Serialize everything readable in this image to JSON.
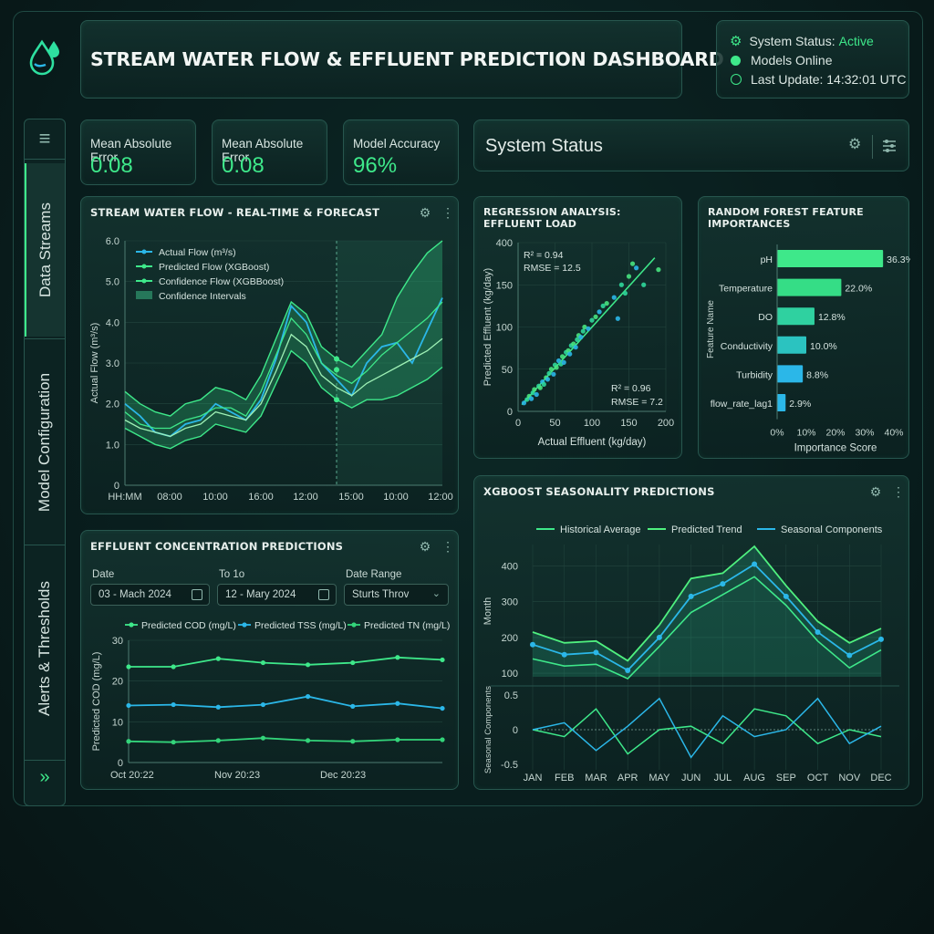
{
  "header": {
    "title": "STREAM WATER FLOW & EFFLUENT PREDICTION DASHBOARD",
    "status": {
      "label": "System Status:",
      "value": "Active",
      "models": "Models Online",
      "last_update": "Last Update: 14:32:01 UTC"
    }
  },
  "sidebar": {
    "tabs": [
      {
        "label": "Data Streams"
      },
      {
        "label": "Model Configuration"
      },
      {
        "label": "Alerts & Thresholds"
      }
    ],
    "expand_label": "»",
    "menu_label": "≡"
  },
  "kpis": [
    {
      "label": "Mean Absolute Error",
      "value": "0.08"
    },
    {
      "label": "Mean Absolute Error",
      "value": "0.08"
    },
    {
      "label": "Model Accuracy",
      "value": "96%"
    }
  ],
  "system_status_panel": {
    "title": "System Status"
  },
  "flow_chart": {
    "title": "STREAM WATER FLOW - REAL-TIME & FORECAST",
    "legend": [
      "Actual Flow (m³/s)",
      "Predicted Flow (XGBoost)",
      "Confidence Flow (XGBBoost)",
      "Confidence Intervals"
    ],
    "ylabel": "Actual Flow (m³/s)",
    "yticks": [
      "6.0",
      "5.0",
      "4.0",
      "3.0",
      "2.0",
      "1.0",
      "0"
    ],
    "xticks": [
      "HH:MM",
      "08:00",
      "10:00",
      "16:00",
      "12:00",
      "15:00",
      "10:00",
      "12:00"
    ]
  },
  "regression_chart": {
    "title": "REGRESSION ANALYSIS: EFFLUENT LOAD",
    "stats_top": [
      "R² = 0.94",
      "RMSE = 12.5"
    ],
    "stats_bottom": [
      "R² = 0.96",
      "RMSE = 7.2"
    ],
    "xlabel": "Actual Effluent (kg/day)",
    "ylabel": "Predicted Effluent (kg/day)",
    "xticks": [
      "0",
      "50",
      "100",
      "150",
      "200"
    ],
    "yticks": [
      "400",
      "150",
      "100",
      "50",
      "0"
    ]
  },
  "feature_chart": {
    "title": "RANDOM FOREST FEATURE IMPORTANCES",
    "ylabel": "Feature Name",
    "xlabel": "Importance Score",
    "xticks": [
      "0%",
      "10%",
      "20%",
      "30%",
      "40%"
    ],
    "features": [
      {
        "name": "pH",
        "label": "36.3%"
      },
      {
        "name": "Temperature",
        "label": "22.0%"
      },
      {
        "name": "DO",
        "label": "12.8%"
      },
      {
        "name": "Conductivity",
        "label": "10.0%"
      },
      {
        "name": "Turbidity",
        "label": "8.8%"
      },
      {
        "name": "flow_rate_lag1",
        "label": "2.9%"
      }
    ]
  },
  "effluent_chart": {
    "title": "EFFLUENT CONCENTRATION PREDICTIONS",
    "date_label": "Date",
    "to_label": "To 1o",
    "range_label": "Date Range",
    "date_value": "03 - Mach 2024",
    "to_value": "12 - Mary 2024",
    "range_value": "Sturts Throv",
    "legend": [
      "Predicted COD (mg/L)",
      "Predicted TSS (mg/L)",
      "Predicted TN (mg/L)"
    ],
    "ylabel": "Predicted COD (mg/L)",
    "yticks": [
      "30",
      "20",
      "10",
      "0"
    ],
    "xticks": [
      "Oct 20:22",
      "Nov 20:23",
      "Dec 20:23"
    ]
  },
  "seasonality_chart": {
    "title": "XGBOOST SEASONALITY PREDICTIONS",
    "legend": [
      "Historical Average",
      "Predicted Trend",
      "Seasonal Components"
    ],
    "ylabel_top": "Month",
    "ylabel_bottom": "Seasonal Components",
    "yticks_top": [
      "400",
      "300",
      "200",
      "100"
    ],
    "yticks_bottom": [
      "0.5",
      "0",
      "-0.5"
    ],
    "months": [
      "JAN",
      "FEB",
      "MAR",
      "APR",
      "MAY",
      "JUN",
      "JUL",
      "AUG",
      "SEP",
      "OCT",
      "NOV",
      "DEC"
    ]
  },
  "chart_data": [
    {
      "type": "line",
      "title": "STREAM WATER FLOW - REAL-TIME & FORECAST",
      "ylim": [
        0,
        6
      ],
      "series": [
        {
          "name": "Actual Flow (m³/s)",
          "values": [
            2.0,
            1.7,
            1.3,
            1.2,
            1.5,
            1.6,
            2.0,
            1.8,
            1.6,
            2.1,
            3.1,
            4.4,
            4.0,
            3.0,
            2.6,
            2.2,
            3.0,
            3.4,
            3.5,
            3.0,
            3.8,
            4.6
          ]
        },
        {
          "name": "Predicted Flow (XGBoost)",
          "values": [
            1.8,
            1.5,
            1.4,
            1.4,
            1.6,
            1.7,
            1.9,
            1.9,
            1.7,
            2.3,
            3.2,
            4.1,
            3.7,
            3.0,
            2.7,
            2.5,
            2.8,
            3.2,
            3.5,
            3.8,
            4.1,
            4.5
          ]
        },
        {
          "name": "Confidence Flow (XGBBoost)",
          "values": [
            1.6,
            1.4,
            1.3,
            1.2,
            1.4,
            1.5,
            1.8,
            1.7,
            1.6,
            2.0,
            2.8,
            3.7,
            3.4,
            2.7,
            2.4,
            2.2,
            2.5,
            2.7,
            2.9,
            3.1,
            3.3,
            3.6
          ]
        }
      ],
      "band_upper": [
        2.3,
        2.0,
        1.8,
        1.7,
        2.0,
        2.1,
        2.4,
        2.3,
        2.1,
        2.7,
        3.6,
        4.5,
        4.2,
        3.4,
        3.1,
        2.9,
        3.3,
        3.7,
        4.6,
        5.2,
        5.7,
        6.0
      ],
      "band_lower": [
        1.4,
        1.2,
        1.0,
        0.9,
        1.1,
        1.2,
        1.5,
        1.4,
        1.3,
        1.7,
        2.5,
        3.3,
        3.0,
        2.4,
        2.1,
        1.9,
        2.1,
        2.1,
        2.2,
        2.4,
        2.6,
        2.9
      ]
    },
    {
      "type": "scatter",
      "title": "REGRESSION ANALYSIS: EFFLUENT LOAD",
      "xlim": [
        0,
        200
      ],
      "ylim": [
        0,
        200
      ],
      "points": [
        [
          8,
          10
        ],
        [
          12,
          14
        ],
        [
          15,
          18
        ],
        [
          18,
          15
        ],
        [
          20,
          22
        ],
        [
          22,
          26
        ],
        [
          25,
          20
        ],
        [
          28,
          30
        ],
        [
          30,
          28
        ],
        [
          33,
          35
        ],
        [
          35,
          32
        ],
        [
          38,
          40
        ],
        [
          40,
          38
        ],
        [
          42,
          45
        ],
        [
          45,
          50
        ],
        [
          48,
          44
        ],
        [
          50,
          55
        ],
        [
          52,
          52
        ],
        [
          55,
          60
        ],
        [
          58,
          56
        ],
        [
          60,
          65
        ],
        [
          62,
          58
        ],
        [
          65,
          70
        ],
        [
          68,
          72
        ],
        [
          70,
          68
        ],
        [
          72,
          78
        ],
        [
          75,
          80
        ],
        [
          78,
          76
        ],
        [
          80,
          85
        ],
        [
          82,
          90
        ],
        [
          85,
          88
        ],
        [
          88,
          95
        ],
        [
          90,
          100
        ],
        [
          95,
          98
        ],
        [
          100,
          108
        ],
        [
          105,
          112
        ],
        [
          110,
          118
        ],
        [
          115,
          125
        ],
        [
          120,
          128
        ],
        [
          130,
          135
        ],
        [
          140,
          150
        ],
        [
          150,
          160
        ],
        [
          160,
          170
        ],
        [
          170,
          150
        ],
        [
          190,
          168
        ],
        [
          135,
          110
        ],
        [
          145,
          140
        ],
        [
          155,
          175
        ]
      ],
      "fit": [
        [
          5,
          8
        ],
        [
          185,
          182
        ]
      ]
    },
    {
      "type": "bar",
      "title": "RANDOM FOREST FEATURE IMPORTANCES",
      "categories": [
        "pH",
        "Temperature",
        "DO",
        "Conductivity",
        "Turbidity",
        "flow_rate_lag1"
      ],
      "values": [
        36.3,
        22.0,
        12.8,
        10.0,
        8.8,
        2.9
      ],
      "xlim": [
        0,
        40
      ]
    },
    {
      "type": "line",
      "title": "EFFLUENT CONCENTRATION PREDICTIONS",
      "ylim": [
        0,
        30
      ],
      "series": [
        {
          "name": "Predicted COD (mg/L)",
          "values": [
            23.5,
            23.5,
            25.5,
            24.5,
            24.0,
            24.5,
            25.8,
            25.2
          ]
        },
        {
          "name": "Predicted TSS (mg/L)",
          "values": [
            14.0,
            14.2,
            13.6,
            14.2,
            16.2,
            13.8,
            14.5,
            13.3
          ]
        },
        {
          "name": "Predicted TN (mg/L)",
          "values": [
            5.2,
            5.0,
            5.4,
            6.0,
            5.4,
            5.2,
            5.6,
            5.6
          ]
        }
      ]
    },
    {
      "type": "line",
      "title": "XGBOOST SEASONALITY PREDICTIONS",
      "categories": [
        "JAN",
        "FEB",
        "MAR",
        "APR",
        "MAY",
        "JUN",
        "JUL",
        "AUG",
        "SEP",
        "OCT",
        "NOV",
        "DEC"
      ],
      "ylim": [
        100,
        450
      ],
      "series": [
        {
          "name": "Historical Average",
          "values": [
            140,
            120,
            125,
            85,
            175,
            270,
            320,
            370,
            290,
            190,
            115,
            165
          ]
        },
        {
          "name": "Predicted Trend",
          "values": [
            215,
            185,
            190,
            135,
            235,
            365,
            380,
            455,
            345,
            245,
            185,
            225
          ]
        },
        {
          "name": "Seasonal Components",
          "values": [
            180,
            152,
            158,
            108,
            200,
            315,
            350,
            405,
            315,
            215,
            150,
            195
          ]
        }
      ],
      "seasonal": {
        "ylim": [
          -0.5,
          0.5
        ],
        "series": [
          {
            "name": "Seasonal Components",
            "values": [
              0.0,
              0.1,
              -0.3,
              0.05,
              0.45,
              -0.4,
              0.2,
              -0.1,
              0.0,
              0.45,
              -0.2,
              0.05
            ]
          },
          {
            "name": "Predicted Trend",
            "values": [
              0.0,
              -0.1,
              0.3,
              -0.35,
              0.0,
              0.05,
              -0.2,
              0.3,
              0.2,
              -0.2,
              0.0,
              -0.1
            ]
          }
        ]
      }
    }
  ],
  "colors": {
    "green": "#3ee88a",
    "blue": "#2bb7e8",
    "teal": "#1fd1a6"
  }
}
